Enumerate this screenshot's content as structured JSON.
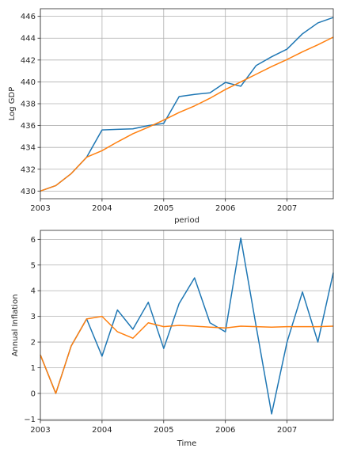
{
  "chart_data": [
    {
      "type": "line",
      "xlabel": "period",
      "ylabel": "Log GDP",
      "x": [
        2003.0,
        2003.25,
        2003.5,
        2003.75,
        2004.0,
        2004.25,
        2004.5,
        2004.75,
        2005.0,
        2005.25,
        2005.5,
        2005.75,
        2006.0,
        2006.25,
        2006.5,
        2006.75,
        2007.0,
        2007.25,
        2007.5,
        2007.75
      ],
      "xlim": [
        2003.0,
        2007.75
      ],
      "ylim": [
        429.3,
        446.7
      ],
      "xticks": [
        2003,
        2004,
        2005,
        2006,
        2007
      ],
      "xtick_labels": [
        "2003",
        "2004",
        "2005",
        "2006",
        "2007"
      ],
      "yticks": [
        430,
        432,
        434,
        436,
        438,
        440,
        442,
        444,
        446
      ],
      "ytick_labels": [
        "430",
        "432",
        "434",
        "436",
        "438",
        "440",
        "442",
        "444",
        "446"
      ],
      "grid": true,
      "series": [
        {
          "color": "#1f77b4",
          "values": [
            430.0,
            430.5,
            431.6,
            433.1,
            435.6,
            435.65,
            435.7,
            436.0,
            436.2,
            438.65,
            438.85,
            439.0,
            439.95,
            439.6,
            441.5,
            442.3,
            443.0,
            444.4,
            445.4,
            445.9
          ]
        },
        {
          "color": "#ff7f0e",
          "values": [
            430.0,
            430.5,
            431.6,
            433.1,
            433.7,
            434.5,
            435.25,
            435.85,
            436.5,
            437.2,
            437.8,
            438.5,
            439.3,
            440.0,
            440.7,
            441.4,
            442.05,
            442.75,
            443.4,
            444.1
          ]
        }
      ]
    },
    {
      "type": "line",
      "xlabel": "Time",
      "ylabel": "Annual Inflation",
      "x": [
        2003.0,
        2003.25,
        2003.5,
        2003.75,
        2004.0,
        2004.25,
        2004.5,
        2004.75,
        2005.0,
        2005.25,
        2005.5,
        2005.75,
        2006.0,
        2006.25,
        2006.5,
        2006.75,
        2007.0,
        2007.25,
        2007.5,
        2007.75
      ],
      "xlim": [
        2003.0,
        2007.75
      ],
      "ylim": [
        -1.05,
        6.35
      ],
      "xticks": [
        2003,
        2004,
        2005,
        2006,
        2007
      ],
      "xtick_labels": [
        "2003",
        "2004",
        "2005",
        "2006",
        "2007"
      ],
      "yticks": [
        -1,
        0,
        1,
        2,
        3,
        4,
        5,
        6
      ],
      "ytick_labels": [
        "−1",
        "0",
        "1",
        "2",
        "3",
        "4",
        "5",
        "6"
      ],
      "grid": true,
      "series": [
        {
          "color": "#1f77b4",
          "values": [
            1.5,
            0.0,
            1.85,
            2.9,
            1.45,
            3.25,
            2.5,
            3.55,
            1.75,
            3.5,
            4.5,
            2.75,
            2.4,
            6.05,
            2.6,
            -0.8,
            2.0,
            3.95,
            2.0,
            4.7
          ]
        },
        {
          "color": "#ff7f0e",
          "values": [
            1.5,
            0.0,
            1.85,
            2.9,
            3.0,
            2.4,
            2.15,
            2.75,
            2.6,
            2.65,
            2.62,
            2.58,
            2.55,
            2.62,
            2.6,
            2.58,
            2.6,
            2.6,
            2.6,
            2.62
          ]
        }
      ]
    }
  ]
}
